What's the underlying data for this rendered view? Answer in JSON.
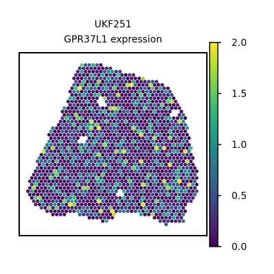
{
  "chart_data": {
    "type": "scatter",
    "title": [
      "UKF251",
      "GPR37L1 expression"
    ],
    "colorbar": {
      "colormap": "viridis",
      "range": [
        0.0,
        2.0
      ],
      "ticks": [
        {
          "value": 0.0,
          "label": "0.0"
        },
        {
          "value": 0.5,
          "label": "0.5"
        },
        {
          "value": 1.0,
          "label": "1.0"
        },
        {
          "value": 1.5,
          "label": "1.5"
        },
        {
          "value": 2.0,
          "label": "2.0"
        }
      ]
    },
    "axes": {
      "xticks": false,
      "yticks": false,
      "grid": false
    },
    "colors": {
      "viridis": [
        "#440154",
        "#482878",
        "#3e4989",
        "#31688e",
        "#26828e",
        "#1f9e89",
        "#35b779",
        "#6ece58",
        "#b5de2b",
        "#fde725"
      ]
    }
  }
}
